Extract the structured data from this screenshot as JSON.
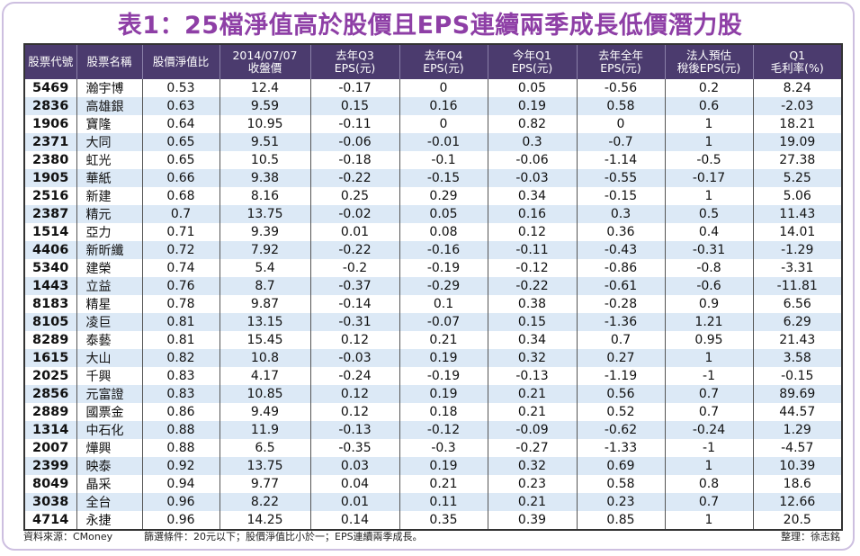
{
  "title": "表1：25檔淨值高於股價且EPS連續兩季成長低價潛力股",
  "table": {
    "header": [
      [
        "股票代號"
      ],
      [
        "股票名稱"
      ],
      [
        "股價淨值比"
      ],
      [
        "2014/07/07",
        "收盤價"
      ],
      [
        "去年Q3",
        "EPS(元)"
      ],
      [
        "去年Q4",
        "EPS(元)"
      ],
      [
        "今年Q1",
        "EPS(元)"
      ],
      [
        "去年全年",
        "EPS(元)"
      ],
      [
        "法人預估",
        "稅後EPS(元)"
      ],
      [
        "Q1",
        "毛利率(%)"
      ]
    ],
    "rows": [
      [
        "5469",
        "瀚宇博",
        "0.53",
        "12.4",
        "-0.17",
        "0",
        "0.05",
        "-0.56",
        "0.2",
        "8.24"
      ],
      [
        "2836",
        "高雄銀",
        "0.63",
        "9.59",
        "0.15",
        "0.16",
        "0.19",
        "0.58",
        "0.6",
        "-2.03"
      ],
      [
        "1906",
        "寶隆",
        "0.64",
        "10.95",
        "-0.11",
        "0",
        "0.82",
        "0",
        "1",
        "18.21"
      ],
      [
        "2371",
        "大同",
        "0.65",
        "9.51",
        "-0.06",
        "-0.01",
        "0.3",
        "-0.7",
        "1",
        "19.09"
      ],
      [
        "2380",
        "虹光",
        "0.65",
        "10.5",
        "-0.18",
        "-0.1",
        "-0.06",
        "-1.14",
        "-0.5",
        "27.38"
      ],
      [
        "1905",
        "華紙",
        "0.66",
        "9.38",
        "-0.22",
        "-0.15",
        "-0.03",
        "-0.55",
        "-0.17",
        "5.25"
      ],
      [
        "2516",
        "新建",
        "0.68",
        "8.16",
        "0.25",
        "0.29",
        "0.34",
        "-0.15",
        "1",
        "5.06"
      ],
      [
        "2387",
        "精元",
        "0.7",
        "13.75",
        "-0.02",
        "0.05",
        "0.16",
        "0.3",
        "0.5",
        "11.43"
      ],
      [
        "1514",
        "亞力",
        "0.71",
        "9.39",
        "0.01",
        "0.08",
        "0.12",
        "0.36",
        "0.4",
        "14.01"
      ],
      [
        "4406",
        "新昕纖",
        "0.72",
        "7.92",
        "-0.22",
        "-0.16",
        "-0.11",
        "-0.43",
        "-0.31",
        "-1.29"
      ],
      [
        "5340",
        "建榮",
        "0.74",
        "5.4",
        "-0.2",
        "-0.19",
        "-0.12",
        "-0.86",
        "-0.8",
        "-3.31"
      ],
      [
        "1443",
        "立益",
        "0.76",
        "8.7",
        "-0.37",
        "-0.29",
        "-0.22",
        "-0.61",
        "-0.6",
        "-11.81"
      ],
      [
        "8183",
        "精星",
        "0.78",
        "9.87",
        "-0.14",
        "0.1",
        "0.38",
        "-0.28",
        "0.9",
        "6.56"
      ],
      [
        "8105",
        "凌巨",
        "0.81",
        "13.15",
        "-0.31",
        "-0.07",
        "0.15",
        "-1.36",
        "1.21",
        "6.29"
      ],
      [
        "8289",
        "泰藝",
        "0.81",
        "15.45",
        "0.12",
        "0.21",
        "0.34",
        "0.7",
        "0.95",
        "21.43"
      ],
      [
        "1615",
        "大山",
        "0.82",
        "10.8",
        "-0.03",
        "0.19",
        "0.32",
        "0.27",
        "1",
        "3.58"
      ],
      [
        "2025",
        "千興",
        "0.83",
        "4.17",
        "-0.24",
        "-0.19",
        "-0.13",
        "-1.19",
        "-1",
        "-0.15"
      ],
      [
        "2856",
        "元富證",
        "0.83",
        "10.85",
        "0.12",
        "0.19",
        "0.21",
        "0.56",
        "0.7",
        "89.69"
      ],
      [
        "2889",
        "國票金",
        "0.86",
        "9.49",
        "0.12",
        "0.18",
        "0.21",
        "0.52",
        "0.7",
        "44.57"
      ],
      [
        "1314",
        "中石化",
        "0.88",
        "11.9",
        "-0.13",
        "-0.12",
        "-0.09",
        "-0.62",
        "-0.24",
        "1.29"
      ],
      [
        "2007",
        "燁興",
        "0.88",
        "6.5",
        "-0.35",
        "-0.3",
        "-0.27",
        "-1.33",
        "-1",
        "-4.57"
      ],
      [
        "2399",
        "映泰",
        "0.92",
        "13.75",
        "0.03",
        "0.19",
        "0.32",
        "0.69",
        "1",
        "10.39"
      ],
      [
        "8049",
        "晶采",
        "0.94",
        "9.77",
        "0.04",
        "0.21",
        "0.23",
        "0.58",
        "0.8",
        "18.6"
      ],
      [
        "3038",
        "全台",
        "0.96",
        "8.22",
        "0.01",
        "0.11",
        "0.21",
        "0.23",
        "0.7",
        "12.66"
      ],
      [
        "4714",
        "永捷",
        "0.96",
        "14.25",
        "0.14",
        "0.35",
        "0.39",
        "0.85",
        "1",
        "20.5"
      ]
    ]
  },
  "footer": {
    "source": "資料來源：CMoney",
    "criteria": "篩選條件：20元以下；股價淨值比小於一；EPS連續兩季成長。",
    "compiler": "整理：徐志銘"
  }
}
